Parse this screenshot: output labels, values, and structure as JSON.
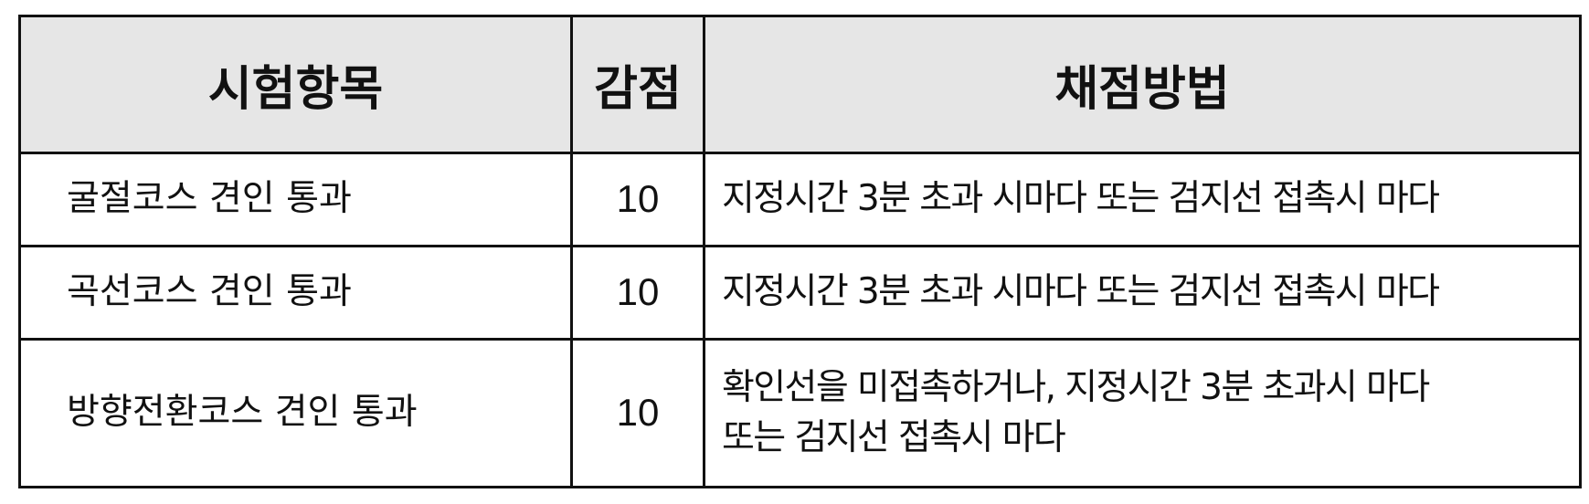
{
  "table": {
    "headers": {
      "item": "시험항목",
      "deduction": "감점",
      "method": "채점방법"
    },
    "rows": [
      {
        "item": "굴절코스 견인 통과",
        "deduction": "10",
        "method_lines": [
          "지정시간 3분 초과 시마다 또는 검지선 접촉시 마다"
        ]
      },
      {
        "item": "곡선코스 견인 통과",
        "deduction": "10",
        "method_lines": [
          "지정시간 3분 초과 시마다 또는 검지선 접촉시 마다"
        ]
      },
      {
        "item": "방향전환코스 견인 통과",
        "deduction": "10",
        "method_lines": [
          "확인선을 미접촉하거나, 지정시간 3분 초과시 마다",
          "또는 검지선 접촉시 마다"
        ]
      }
    ]
  },
  "colors": {
    "header_background": "#e6e6e6",
    "border": "#111111",
    "text": "#111111"
  }
}
